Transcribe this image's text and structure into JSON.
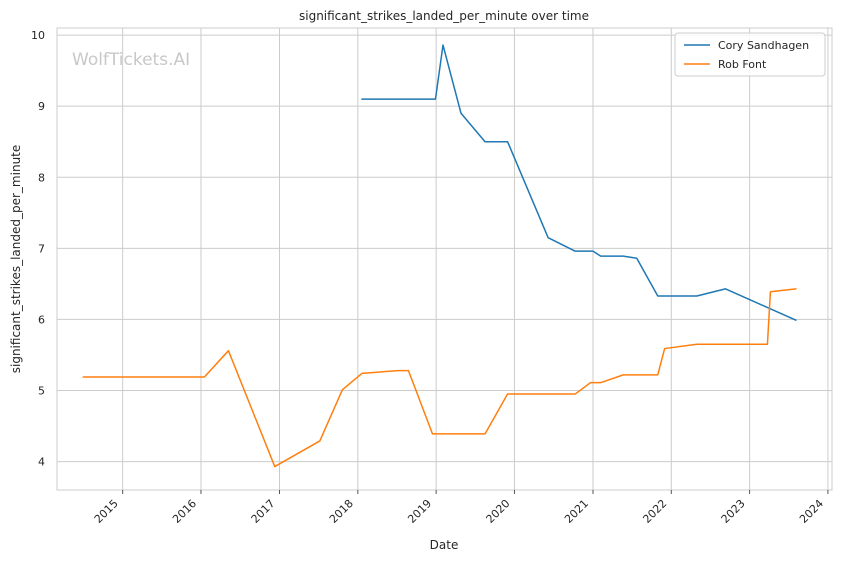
{
  "watermark": "WolfTickets.AI",
  "chart_data": {
    "type": "line",
    "title": "significant_strikes_landed_per_minute over time",
    "xlabel": "Date",
    "ylabel": "significant_strikes_landed_per_minute",
    "x_ticks": [
      "2015",
      "2016",
      "2017",
      "2018",
      "2019",
      "2020",
      "2021",
      "2022",
      "2023",
      "2024"
    ],
    "y_ticks": [
      4,
      5,
      6,
      7,
      8,
      9,
      10
    ],
    "ylim": [
      3.6,
      10.1
    ],
    "xlim": [
      "2014-03-01",
      "2024-01-20"
    ],
    "grid": true,
    "legend_position": "top-right",
    "series": [
      {
        "name": "Cory Sandhagen",
        "color": "#1f77b4",
        "points": [
          {
            "x": "2018-01-20",
            "y": 9.1
          },
          {
            "x": "2018-12-29",
            "y": 9.1
          },
          {
            "x": "2019-02-02",
            "y": 9.86
          },
          {
            "x": "2019-04-27",
            "y": 8.9
          },
          {
            "x": "2019-08-17",
            "y": 8.5
          },
          {
            "x": "2019-11-30",
            "y": 8.5
          },
          {
            "x": "2020-06-06",
            "y": 7.15
          },
          {
            "x": "2020-10-10",
            "y": 6.96
          },
          {
            "x": "2021-01-01",
            "y": 6.96
          },
          {
            "x": "2021-02-06",
            "y": 6.89
          },
          {
            "x": "2021-05-22",
            "y": 6.89
          },
          {
            "x": "2021-07-24",
            "y": 6.86
          },
          {
            "x": "2021-10-30",
            "y": 6.33
          },
          {
            "x": "2022-04-30",
            "y": 6.33
          },
          {
            "x": "2022-09-10",
            "y": 6.43
          },
          {
            "x": "2023-08-05",
            "y": 5.99
          }
        ]
      },
      {
        "name": "Rob Font",
        "color": "#ff7f0e",
        "points": [
          {
            "x": "2014-07-01",
            "y": 5.19
          },
          {
            "x": "2016-01-17",
            "y": 5.19
          },
          {
            "x": "2016-05-08",
            "y": 5.56
          },
          {
            "x": "2016-12-10",
            "y": 3.93
          },
          {
            "x": "2017-07-08",
            "y": 4.29
          },
          {
            "x": "2017-10-21",
            "y": 5.01
          },
          {
            "x": "2018-01-20",
            "y": 5.24
          },
          {
            "x": "2018-07-07",
            "y": 5.28
          },
          {
            "x": "2018-08-25",
            "y": 5.28
          },
          {
            "x": "2018-12-15",
            "y": 4.39
          },
          {
            "x": "2019-08-17",
            "y": 4.39
          },
          {
            "x": "2019-11-30",
            "y": 4.95
          },
          {
            "x": "2020-10-10",
            "y": 4.95
          },
          {
            "x": "2020-12-20",
            "y": 5.11
          },
          {
            "x": "2021-02-06",
            "y": 5.11
          },
          {
            "x": "2021-05-22",
            "y": 5.22
          },
          {
            "x": "2021-10-30",
            "y": 5.22
          },
          {
            "x": "2021-12-01",
            "y": 5.59
          },
          {
            "x": "2022-04-30",
            "y": 5.65
          },
          {
            "x": "2023-03-25",
            "y": 5.65
          },
          {
            "x": "2023-04-08",
            "y": 6.39
          },
          {
            "x": "2023-08-05",
            "y": 6.43
          }
        ]
      }
    ]
  }
}
